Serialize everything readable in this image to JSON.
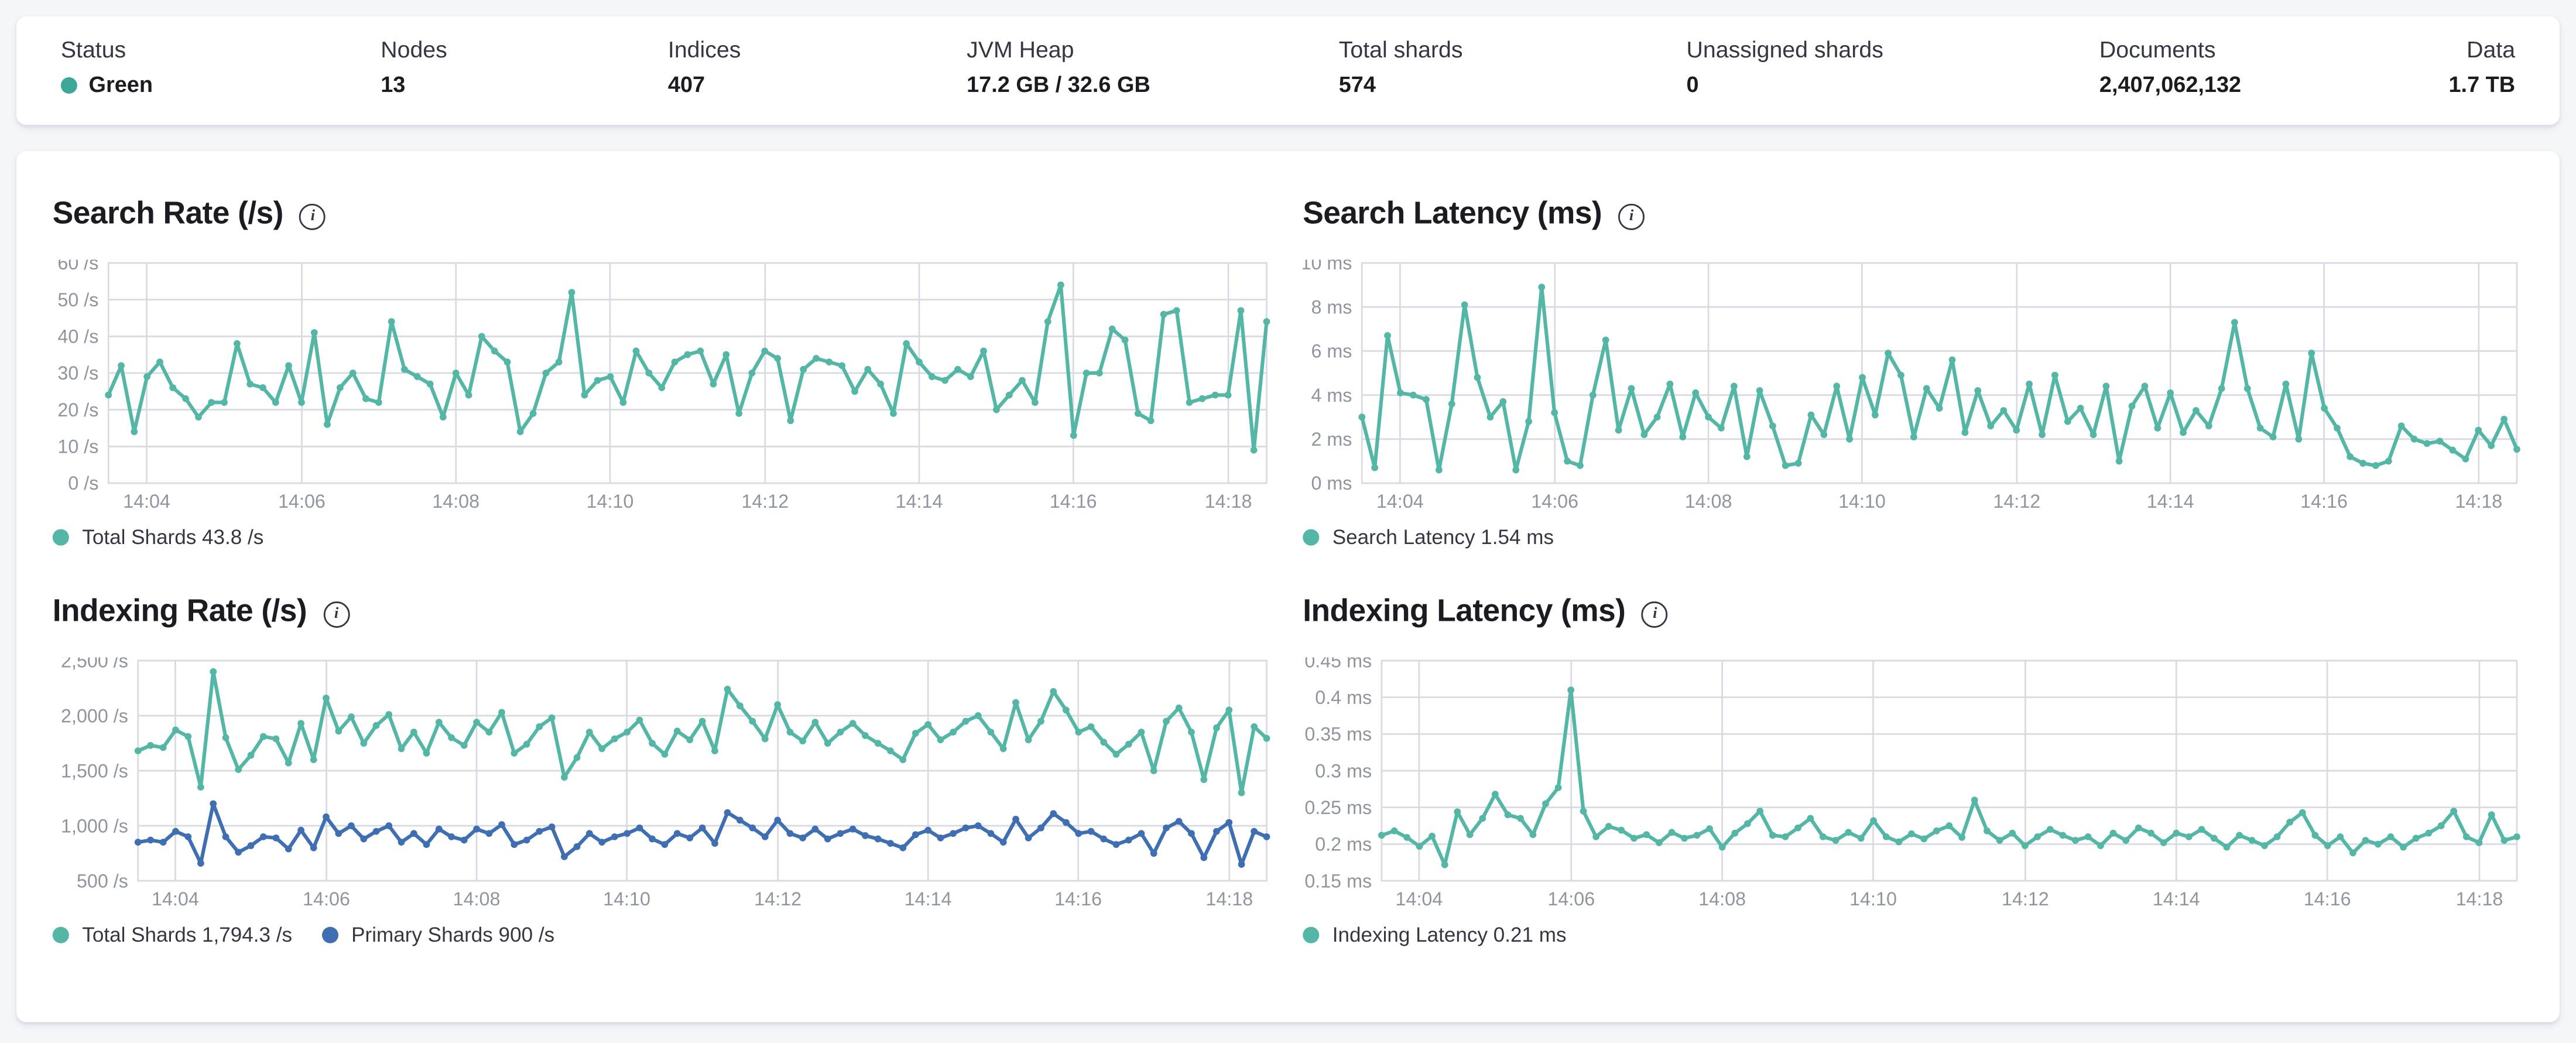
{
  "colors": {
    "status_green": "#3ea898",
    "teal_series": "#54b6a5",
    "blue_series": "#3f6fb2",
    "grid": "#d8dce2",
    "tick_text": "#8e959f",
    "page_bg": "#f4f6f9"
  },
  "top_bar": {
    "metrics": [
      {
        "label": "Status",
        "value": "Green"
      },
      {
        "label": "Nodes",
        "value": "13"
      },
      {
        "label": "Indices",
        "value": "407"
      },
      {
        "label": "JVM Heap",
        "value": "17.2 GB / 32.6 GB"
      },
      {
        "label": "Total shards",
        "value": "574"
      },
      {
        "label": "Unassigned shards",
        "value": "0"
      },
      {
        "label": "Documents",
        "value": "2,407,062,132"
      },
      {
        "label": "Data",
        "value": "1.7 TB"
      }
    ]
  },
  "chart_data": [
    {
      "type": "line",
      "title": "Search Rate (/s)",
      "ylim": [
        0,
        60
      ],
      "y_ticks": [
        {
          "v": 0,
          "label": "0 /s"
        },
        {
          "v": 10,
          "label": "10 /s"
        },
        {
          "v": 20,
          "label": "20 /s"
        },
        {
          "v": 30,
          "label": "30 /s"
        },
        {
          "v": 40,
          "label": "40 /s"
        },
        {
          "v": 50,
          "label": "50 /s"
        },
        {
          "v": 60,
          "label": "60 /s"
        }
      ],
      "x_ticks": [
        {
          "label": "14:04",
          "pos": 0.033
        },
        {
          "label": "14:06",
          "pos": 0.167
        },
        {
          "label": "14:08",
          "pos": 0.3
        },
        {
          "label": "14:10",
          "pos": 0.433
        },
        {
          "label": "14:12",
          "pos": 0.567
        },
        {
          "label": "14:14",
          "pos": 0.7
        },
        {
          "label": "14:16",
          "pos": 0.833
        },
        {
          "label": "14:18",
          "pos": 0.967
        }
      ],
      "series": [
        {
          "name": "Total Shards",
          "legend_label": "Total Shards 43.8 /s",
          "color": "#54b6a5",
          "values": [
            24,
            32,
            14,
            29,
            33,
            26,
            23,
            18,
            22,
            22,
            38,
            27,
            26,
            22,
            32,
            22,
            41,
            16,
            26,
            30,
            23,
            22,
            44,
            31,
            29,
            27,
            18,
            30,
            24,
            40,
            36,
            33,
            14,
            19,
            30,
            33,
            52,
            24,
            28,
            29,
            22,
            36,
            30,
            26,
            33,
            35,
            36,
            27,
            35,
            19,
            30,
            36,
            34,
            17,
            31,
            34,
            33,
            32,
            25,
            31,
            27,
            19,
            38,
            33,
            29,
            28,
            31,
            29,
            36,
            20,
            24,
            28,
            22,
            44,
            54,
            13,
            30,
            30,
            42,
            39,
            19,
            17,
            46,
            47,
            22,
            23,
            24,
            24,
            47,
            9,
            44
          ]
        }
      ]
    },
    {
      "type": "line",
      "title": "Search Latency (ms)",
      "ylim": [
        0,
        10
      ],
      "y_ticks": [
        {
          "v": 0,
          "label": "0 ms"
        },
        {
          "v": 2,
          "label": "2 ms"
        },
        {
          "v": 4,
          "label": "4 ms"
        },
        {
          "v": 6,
          "label": "6 ms"
        },
        {
          "v": 8,
          "label": "8 ms"
        },
        {
          "v": 10,
          "label": "10 ms"
        }
      ],
      "x_ticks": [
        {
          "label": "14:04",
          "pos": 0.033
        },
        {
          "label": "14:06",
          "pos": 0.167
        },
        {
          "label": "14:08",
          "pos": 0.3
        },
        {
          "label": "14:10",
          "pos": 0.433
        },
        {
          "label": "14:12",
          "pos": 0.567
        },
        {
          "label": "14:14",
          "pos": 0.7
        },
        {
          "label": "14:16",
          "pos": 0.833
        },
        {
          "label": "14:18",
          "pos": 0.967
        }
      ],
      "series": [
        {
          "name": "Search Latency",
          "legend_label": "Search Latency 1.54 ms",
          "color": "#54b6a5",
          "values": [
            3.0,
            0.7,
            6.7,
            4.1,
            4.0,
            3.8,
            0.6,
            3.6,
            8.1,
            4.8,
            3.0,
            3.7,
            0.6,
            2.8,
            8.9,
            3.2,
            1.0,
            0.8,
            4.0,
            6.5,
            2.4,
            4.3,
            2.2,
            3.0,
            4.5,
            2.1,
            4.1,
            3.0,
            2.5,
            4.4,
            1.2,
            4.2,
            2.6,
            0.8,
            0.9,
            3.1,
            2.2,
            4.4,
            2.0,
            4.8,
            3.1,
            5.9,
            4.9,
            2.1,
            4.3,
            3.4,
            5.6,
            2.3,
            4.2,
            2.6,
            3.3,
            2.4,
            4.5,
            2.2,
            4.9,
            2.8,
            3.4,
            2.2,
            4.4,
            1.0,
            3.5,
            4.4,
            2.5,
            4.1,
            2.3,
            3.3,
            2.6,
            4.3,
            7.3,
            4.3,
            2.5,
            2.1,
            4.5,
            2.0,
            5.9,
            3.4,
            2.5,
            1.2,
            0.9,
            0.8,
            1.0,
            2.6,
            2.0,
            1.8,
            1.9,
            1.5,
            1.1,
            2.4,
            1.7,
            2.9,
            1.54
          ]
        }
      ]
    },
    {
      "type": "line",
      "title": "Indexing Rate (/s)",
      "ylim": [
        500,
        2500
      ],
      "y_ticks": [
        {
          "v": 500,
          "label": "500 /s"
        },
        {
          "v": 1000,
          "label": "1,000 /s"
        },
        {
          "v": 1500,
          "label": "1,500 /s"
        },
        {
          "v": 2000,
          "label": "2,000 /s"
        },
        {
          "v": 2500,
          "label": "2,500 /s"
        }
      ],
      "x_ticks": [
        {
          "label": "14:04",
          "pos": 0.033
        },
        {
          "label": "14:06",
          "pos": 0.167
        },
        {
          "label": "14:08",
          "pos": 0.3
        },
        {
          "label": "14:10",
          "pos": 0.433
        },
        {
          "label": "14:12",
          "pos": 0.567
        },
        {
          "label": "14:14",
          "pos": 0.7
        },
        {
          "label": "14:16",
          "pos": 0.833
        },
        {
          "label": "14:18",
          "pos": 0.967
        }
      ],
      "series": [
        {
          "name": "Total Shards",
          "legend_label": "Total Shards 1,794.3 /s",
          "color": "#54b6a5",
          "values": [
            1680,
            1730,
            1710,
            1870,
            1810,
            1350,
            2400,
            1800,
            1510,
            1640,
            1810,
            1790,
            1570,
            1930,
            1600,
            2160,
            1860,
            1990,
            1750,
            1910,
            2010,
            1700,
            1850,
            1660,
            1940,
            1800,
            1730,
            1940,
            1850,
            2030,
            1660,
            1740,
            1900,
            1980,
            1440,
            1620,
            1850,
            1700,
            1790,
            1850,
            1960,
            1750,
            1650,
            1860,
            1780,
            1950,
            1680,
            2240,
            2090,
            1950,
            1790,
            2100,
            1850,
            1770,
            1940,
            1750,
            1850,
            1930,
            1820,
            1750,
            1680,
            1600,
            1840,
            1920,
            1780,
            1850,
            1950,
            2000,
            1850,
            1700,
            2120,
            1780,
            1950,
            2220,
            2050,
            1850,
            1900,
            1760,
            1650,
            1740,
            1850,
            1500,
            1950,
            2070,
            1850,
            1420,
            1890,
            2050,
            1300,
            1900,
            1794.3
          ]
        },
        {
          "name": "Primary Shards",
          "legend_label": "Primary Shards 900 /s",
          "color": "#3f6fb2",
          "values": [
            850,
            870,
            850,
            950,
            900,
            660,
            1200,
            900,
            760,
            820,
            900,
            890,
            790,
            960,
            800,
            1080,
            930,
            1000,
            880,
            950,
            1000,
            850,
            930,
            830,
            970,
            900,
            870,
            970,
            930,
            1010,
            830,
            870,
            950,
            990,
            720,
            810,
            930,
            850,
            900,
            930,
            980,
            880,
            830,
            930,
            890,
            980,
            840,
            1120,
            1050,
            980,
            900,
            1050,
            930,
            890,
            970,
            880,
            930,
            970,
            910,
            880,
            840,
            800,
            920,
            960,
            890,
            930,
            980,
            1000,
            930,
            850,
            1060,
            890,
            980,
            1110,
            1030,
            930,
            950,
            880,
            830,
            870,
            930,
            750,
            980,
            1040,
            930,
            710,
            950,
            1030,
            650,
            950,
            900
          ]
        }
      ]
    },
    {
      "type": "line",
      "title": "Indexing Latency (ms)",
      "ylim": [
        0.15,
        0.45
      ],
      "y_ticks": [
        {
          "v": 0.15,
          "label": "0.15 ms"
        },
        {
          "v": 0.2,
          "label": "0.2 ms"
        },
        {
          "v": 0.25,
          "label": "0.25 ms"
        },
        {
          "v": 0.3,
          "label": "0.3 ms"
        },
        {
          "v": 0.35,
          "label": "0.35 ms"
        },
        {
          "v": 0.4,
          "label": "0.4 ms"
        },
        {
          "v": 0.45,
          "label": "0.45 ms"
        }
      ],
      "x_ticks": [
        {
          "label": "14:04",
          "pos": 0.033
        },
        {
          "label": "14:06",
          "pos": 0.167
        },
        {
          "label": "14:08",
          "pos": 0.3
        },
        {
          "label": "14:10",
          "pos": 0.433
        },
        {
          "label": "14:12",
          "pos": 0.567
        },
        {
          "label": "14:14",
          "pos": 0.7
        },
        {
          "label": "14:16",
          "pos": 0.833
        },
        {
          "label": "14:18",
          "pos": 0.967
        }
      ],
      "series": [
        {
          "name": "Indexing Latency",
          "legend_label": "Indexing Latency 0.21 ms",
          "color": "#54b6a5",
          "values": [
            0.212,
            0.218,
            0.209,
            0.197,
            0.211,
            0.172,
            0.244,
            0.213,
            0.235,
            0.268,
            0.24,
            0.235,
            0.213,
            0.255,
            0.277,
            0.41,
            0.245,
            0.21,
            0.224,
            0.219,
            0.208,
            0.213,
            0.202,
            0.216,
            0.208,
            0.212,
            0.221,
            0.196,
            0.215,
            0.228,
            0.245,
            0.212,
            0.21,
            0.222,
            0.235,
            0.21,
            0.205,
            0.216,
            0.208,
            0.232,
            0.21,
            0.203,
            0.214,
            0.207,
            0.218,
            0.225,
            0.209,
            0.26,
            0.218,
            0.205,
            0.215,
            0.198,
            0.21,
            0.22,
            0.212,
            0.205,
            0.21,
            0.198,
            0.215,
            0.205,
            0.222,
            0.215,
            0.202,
            0.215,
            0.21,
            0.22,
            0.208,
            0.196,
            0.212,
            0.205,
            0.198,
            0.21,
            0.23,
            0.243,
            0.212,
            0.198,
            0.21,
            0.188,
            0.205,
            0.2,
            0.21,
            0.196,
            0.208,
            0.215,
            0.225,
            0.245,
            0.21,
            0.202,
            0.24,
            0.205,
            0.21
          ]
        }
      ]
    }
  ]
}
